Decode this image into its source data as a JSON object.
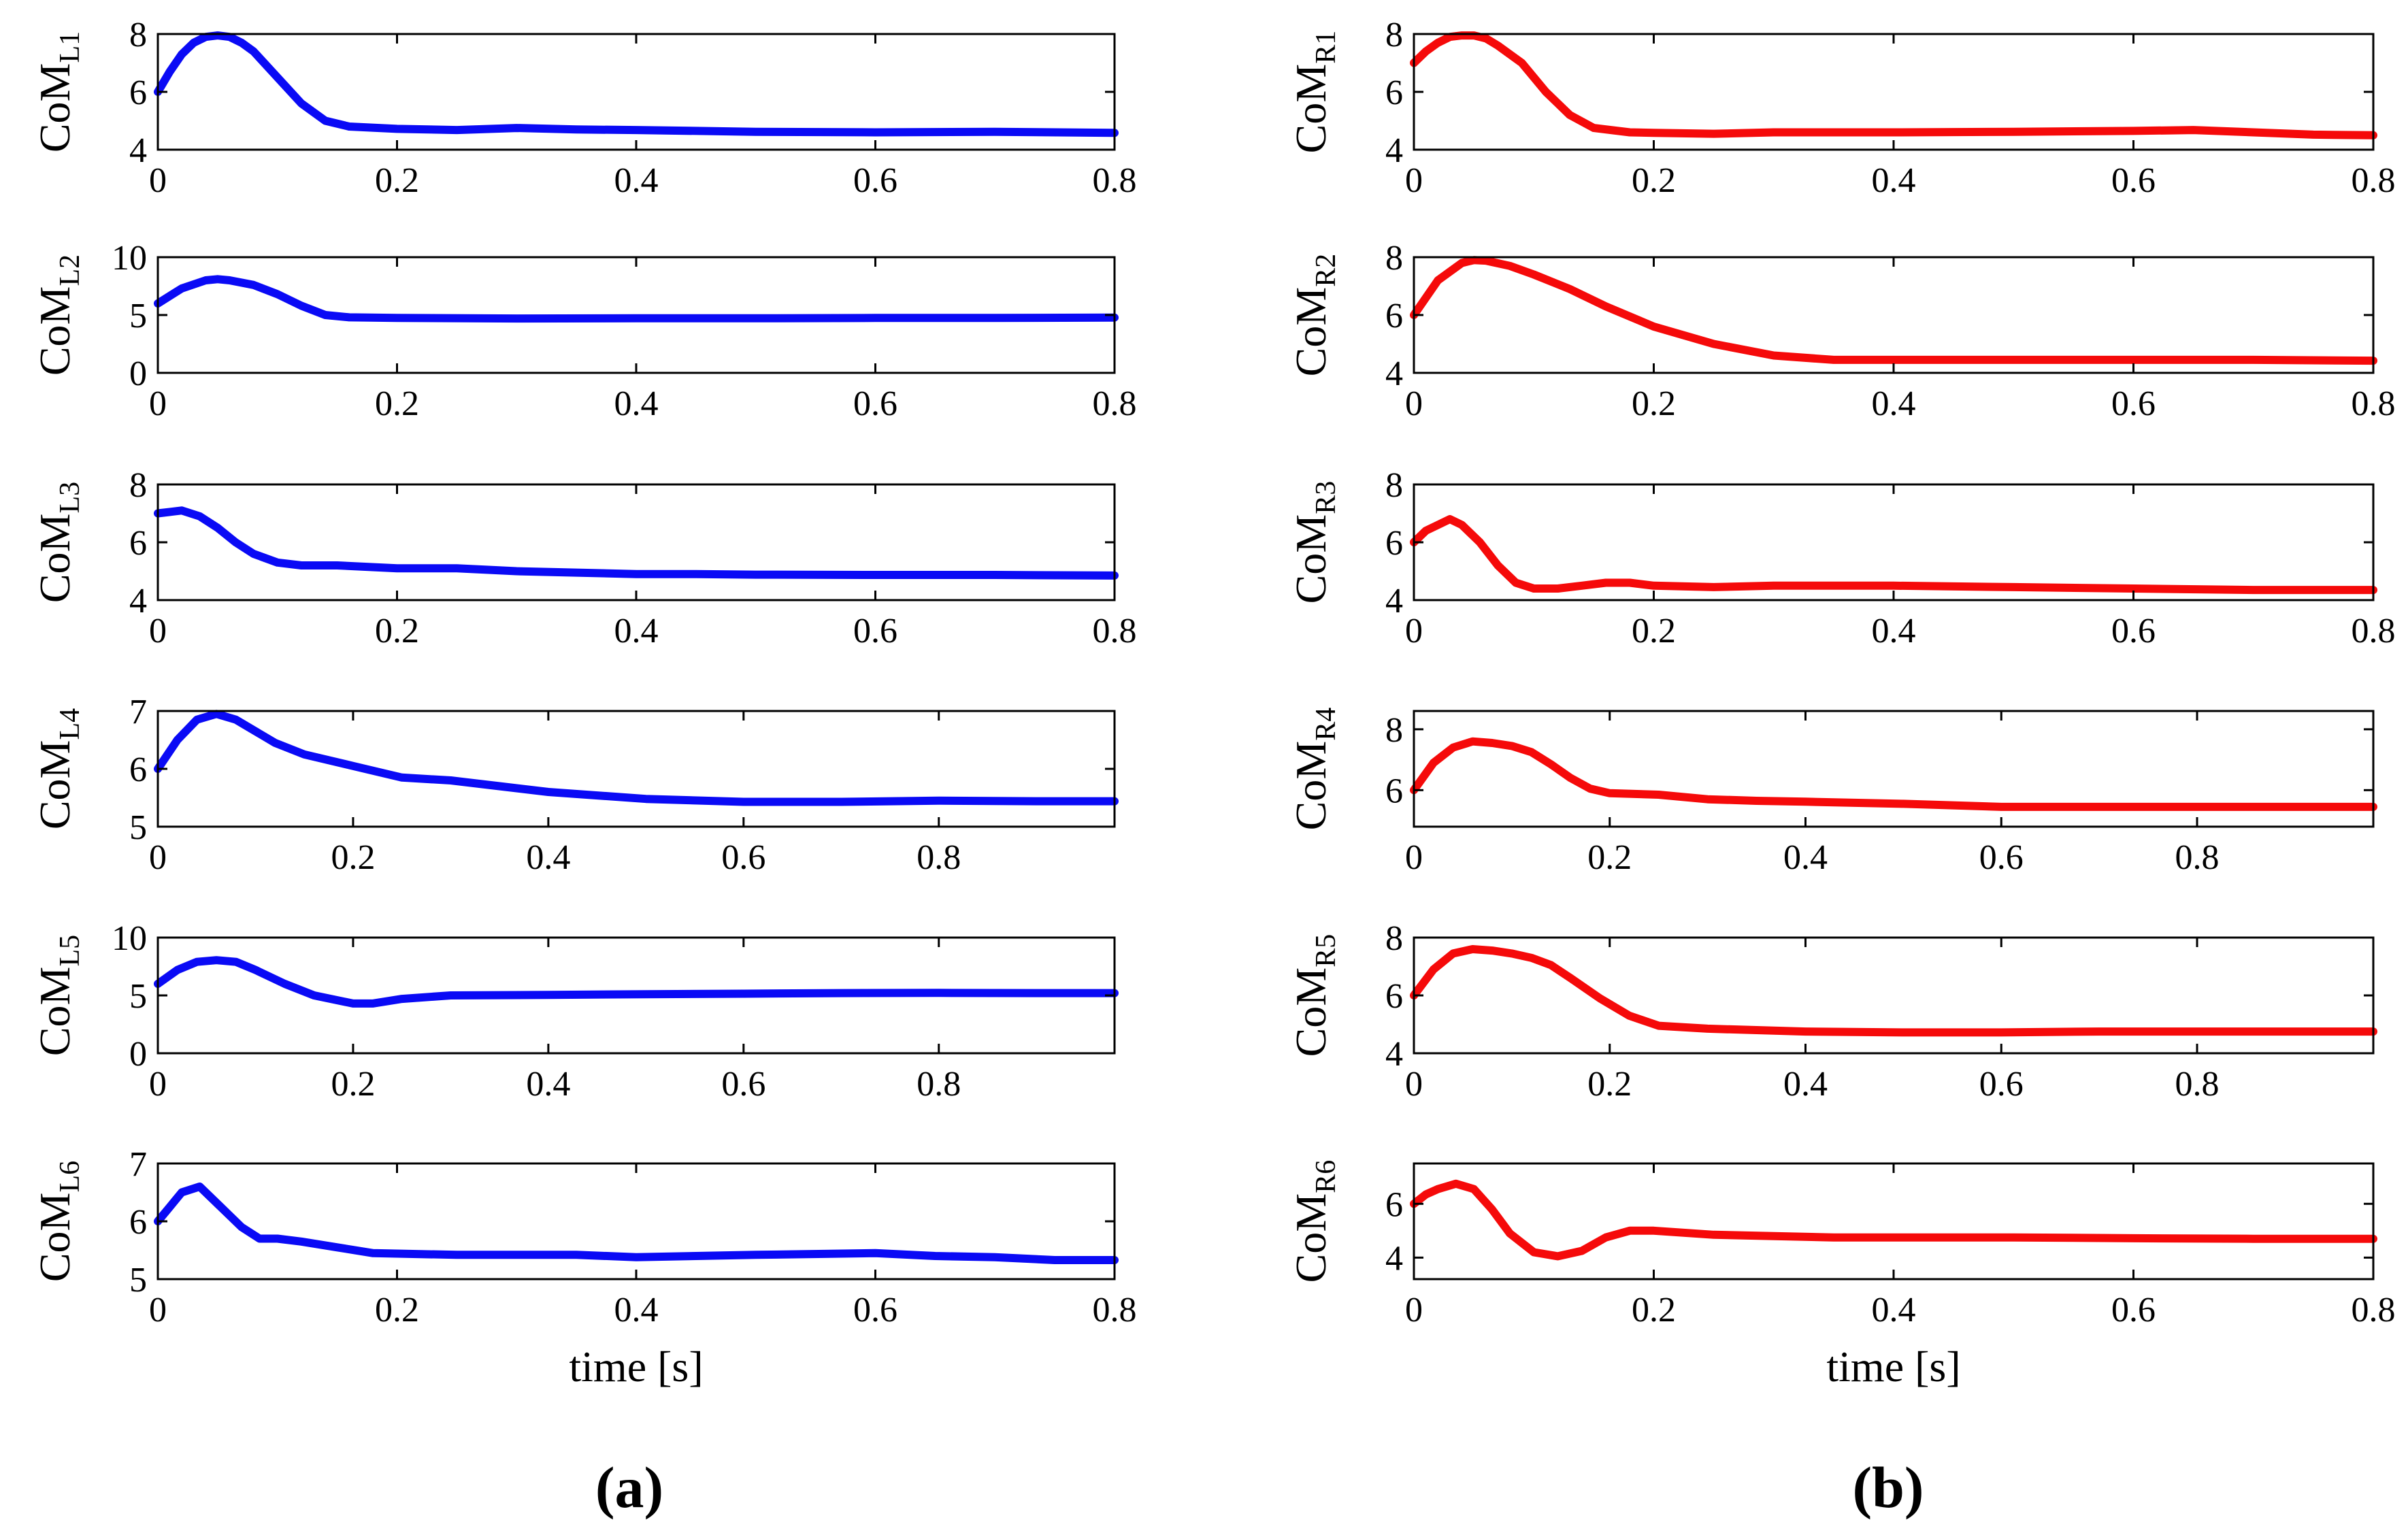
{
  "colors": {
    "left": "#0a0af5",
    "right": "#f50a0a"
  },
  "panel_labels": {
    "a": "(a)",
    "b": "(b)"
  },
  "chart_data": [
    {
      "type": "line",
      "column": "a",
      "row": 1,
      "ylabel_main": "CoM",
      "ylabel_sub": "L1",
      "xlabel": "",
      "xlim": [
        0,
        0.8
      ],
      "xticks": [
        0,
        0.2,
        0.4,
        0.6,
        0.8
      ],
      "xtick_labels": [
        "0",
        "0.2",
        "0.4",
        "0.6",
        "0.8"
      ],
      "ylim": [
        4,
        8
      ],
      "yticks": [
        4,
        6,
        8
      ],
      "ytick_labels": [
        "4",
        "6",
        "8"
      ],
      "x": [
        0,
        0.01,
        0.02,
        0.03,
        0.04,
        0.05,
        0.06,
        0.07,
        0.08,
        0.1,
        0.12,
        0.14,
        0.16,
        0.2,
        0.25,
        0.3,
        0.35,
        0.4,
        0.5,
        0.6,
        0.7,
        0.8
      ],
      "y": [
        6,
        6.7,
        7.3,
        7.7,
        7.9,
        7.95,
        7.9,
        7.7,
        7.4,
        6.5,
        5.6,
        5.0,
        4.8,
        4.72,
        4.68,
        4.75,
        4.7,
        4.68,
        4.62,
        4.6,
        4.62,
        4.58
      ]
    },
    {
      "type": "line",
      "column": "a",
      "row": 2,
      "ylabel_main": "CoM",
      "ylabel_sub": "L2",
      "xlabel": "",
      "xlim": [
        0,
        0.8
      ],
      "xticks": [
        0,
        0.2,
        0.4,
        0.6,
        0.8
      ],
      "xtick_labels": [
        "0",
        "0.2",
        "0.4",
        "0.6",
        "0.8"
      ],
      "ylim": [
        0,
        10
      ],
      "yticks": [
        0,
        5,
        10
      ],
      "ytick_labels": [
        "0",
        "5",
        "10"
      ],
      "x": [
        0,
        0.02,
        0.04,
        0.05,
        0.06,
        0.08,
        0.1,
        0.12,
        0.14,
        0.16,
        0.2,
        0.3,
        0.4,
        0.5,
        0.6,
        0.7,
        0.8
      ],
      "y": [
        6,
        7.3,
        8.0,
        8.1,
        8.0,
        7.6,
        6.8,
        5.8,
        5.0,
        4.8,
        4.75,
        4.7,
        4.72,
        4.72,
        4.75,
        4.75,
        4.78
      ]
    },
    {
      "type": "line",
      "column": "a",
      "row": 3,
      "ylabel_main": "CoM",
      "ylabel_sub": "L3",
      "xlabel": "",
      "xlim": [
        0,
        0.8
      ],
      "xticks": [
        0,
        0.2,
        0.4,
        0.6,
        0.8
      ],
      "xtick_labels": [
        "0",
        "0.2",
        "0.4",
        "0.6",
        "0.8"
      ],
      "ylim": [
        4,
        8
      ],
      "yticks": [
        4,
        6,
        8
      ],
      "ytick_labels": [
        "4",
        "6",
        "8"
      ],
      "x": [
        0,
        0.01,
        0.02,
        0.035,
        0.05,
        0.065,
        0.08,
        0.1,
        0.12,
        0.15,
        0.2,
        0.25,
        0.3,
        0.35,
        0.4,
        0.45,
        0.5,
        0.6,
        0.7,
        0.8
      ],
      "y": [
        7,
        7.05,
        7.1,
        6.9,
        6.5,
        6.0,
        5.6,
        5.3,
        5.2,
        5.2,
        5.1,
        5.1,
        5.0,
        4.95,
        4.9,
        4.9,
        4.88,
        4.87,
        4.87,
        4.85
      ]
    },
    {
      "type": "line",
      "column": "a",
      "row": 4,
      "ylabel_main": "CoM",
      "ylabel_sub": "L4",
      "xlabel": "",
      "xlim": [
        0,
        0.98
      ],
      "xticks": [
        0,
        0.2,
        0.4,
        0.6,
        0.8
      ],
      "xtick_labels": [
        "0",
        "0.2",
        "0.4",
        "0.6",
        "0.8"
      ],
      "ylim": [
        5,
        7
      ],
      "yticks": [
        5,
        6,
        7
      ],
      "ytick_labels": [
        "5",
        "6",
        "7"
      ],
      "x": [
        0,
        0.02,
        0.04,
        0.06,
        0.08,
        0.1,
        0.12,
        0.15,
        0.2,
        0.25,
        0.3,
        0.35,
        0.4,
        0.5,
        0.6,
        0.7,
        0.8,
        0.9,
        0.98
      ],
      "y": [
        6,
        6.5,
        6.85,
        6.95,
        6.85,
        6.65,
        6.45,
        6.25,
        6.05,
        5.85,
        5.8,
        5.7,
        5.6,
        5.48,
        5.43,
        5.43,
        5.45,
        5.44,
        5.44
      ]
    },
    {
      "type": "line",
      "column": "a",
      "row": 5,
      "ylabel_main": "CoM",
      "ylabel_sub": "L5",
      "xlabel": "",
      "xlim": [
        0,
        0.98
      ],
      "xticks": [
        0,
        0.2,
        0.4,
        0.6,
        0.8
      ],
      "xtick_labels": [
        "0",
        "0.2",
        "0.4",
        "0.6",
        "0.8"
      ],
      "ylim": [
        0,
        10
      ],
      "yticks": [
        0,
        5,
        10
      ],
      "ytick_labels": [
        "0",
        "5",
        "10"
      ],
      "x": [
        0,
        0.02,
        0.04,
        0.06,
        0.08,
        0.1,
        0.13,
        0.16,
        0.2,
        0.22,
        0.25,
        0.3,
        0.4,
        0.5,
        0.6,
        0.7,
        0.8,
        0.9,
        0.98
      ],
      "y": [
        6,
        7.2,
        7.9,
        8.05,
        7.9,
        7.2,
        6.0,
        5.0,
        4.3,
        4.3,
        4.7,
        5.0,
        5.05,
        5.1,
        5.15,
        5.2,
        5.22,
        5.2,
        5.2
      ]
    },
    {
      "type": "line",
      "column": "a",
      "row": 6,
      "ylabel_main": "CoM",
      "ylabel_sub": "L6",
      "xlabel": "time [s]",
      "xlim": [
        0,
        0.8
      ],
      "xticks": [
        0,
        0.2,
        0.4,
        0.6,
        0.8
      ],
      "xtick_labels": [
        "0",
        "0.2",
        "0.4",
        "0.6",
        "0.8"
      ],
      "ylim": [
        5,
        7
      ],
      "yticks": [
        5,
        6,
        7
      ],
      "ytick_labels": [
        "5",
        "6",
        "7"
      ],
      "x": [
        0,
        0.01,
        0.02,
        0.035,
        0.05,
        0.07,
        0.085,
        0.1,
        0.12,
        0.15,
        0.18,
        0.25,
        0.3,
        0.35,
        0.4,
        0.45,
        0.5,
        0.6,
        0.65,
        0.7,
        0.75,
        0.8
      ],
      "y": [
        6,
        6.25,
        6.5,
        6.6,
        6.3,
        5.9,
        5.7,
        5.7,
        5.65,
        5.55,
        5.45,
        5.42,
        5.42,
        5.42,
        5.38,
        5.4,
        5.42,
        5.45,
        5.4,
        5.38,
        5.33,
        5.33
      ]
    },
    {
      "type": "line",
      "column": "b",
      "row": 1,
      "ylabel_main": "CoM",
      "ylabel_sub": "R1",
      "xlabel": "",
      "xlim": [
        0,
        0.8
      ],
      "xticks": [
        0,
        0.2,
        0.4,
        0.6,
        0.8
      ],
      "xtick_labels": [
        "0",
        "0.2",
        "0.4",
        "0.6",
        "0.8"
      ],
      "ylim": [
        4,
        8
      ],
      "yticks": [
        4,
        6,
        8
      ],
      "ytick_labels": [
        "4",
        "6",
        "8"
      ],
      "x": [
        0,
        0.01,
        0.02,
        0.03,
        0.04,
        0.05,
        0.06,
        0.07,
        0.09,
        0.11,
        0.13,
        0.15,
        0.18,
        0.2,
        0.25,
        0.3,
        0.4,
        0.5,
        0.6,
        0.65,
        0.7,
        0.75,
        0.8
      ],
      "y": [
        7,
        7.4,
        7.7,
        7.9,
        7.95,
        7.95,
        7.85,
        7.6,
        7.0,
        6.0,
        5.2,
        4.75,
        4.6,
        4.58,
        4.55,
        4.6,
        4.6,
        4.62,
        4.65,
        4.68,
        4.6,
        4.52,
        4.5
      ]
    },
    {
      "type": "line",
      "column": "b",
      "row": 2,
      "ylabel_main": "CoM",
      "ylabel_sub": "R2",
      "xlabel": "",
      "xlim": [
        0,
        0.8
      ],
      "xticks": [
        0,
        0.2,
        0.4,
        0.6,
        0.8
      ],
      "xtick_labels": [
        "0",
        "0.2",
        "0.4",
        "0.6",
        "0.8"
      ],
      "ylim": [
        4,
        8
      ],
      "yticks": [
        4,
        6,
        8
      ],
      "ytick_labels": [
        "4",
        "6",
        "8"
      ],
      "x": [
        0,
        0.02,
        0.04,
        0.05,
        0.06,
        0.08,
        0.1,
        0.13,
        0.16,
        0.2,
        0.25,
        0.3,
        0.35,
        0.4,
        0.5,
        0.6,
        0.7,
        0.8
      ],
      "y": [
        6,
        7.2,
        7.8,
        7.9,
        7.88,
        7.7,
        7.4,
        6.9,
        6.3,
        5.6,
        5.0,
        4.6,
        4.45,
        4.45,
        4.45,
        4.45,
        4.45,
        4.42
      ]
    },
    {
      "type": "line",
      "column": "b",
      "row": 3,
      "ylabel_main": "CoM",
      "ylabel_sub": "R3",
      "xlabel": "",
      "xlim": [
        0,
        0.8
      ],
      "xticks": [
        0,
        0.2,
        0.4,
        0.6,
        0.8
      ],
      "xtick_labels": [
        "0",
        "0.2",
        "0.4",
        "0.6",
        "0.8"
      ],
      "ylim": [
        4,
        8
      ],
      "yticks": [
        4,
        6,
        8
      ],
      "ytick_labels": [
        "4",
        "6",
        "8"
      ],
      "x": [
        0,
        0.01,
        0.02,
        0.03,
        0.04,
        0.055,
        0.07,
        0.085,
        0.1,
        0.12,
        0.14,
        0.16,
        0.18,
        0.2,
        0.25,
        0.3,
        0.4,
        0.5,
        0.6,
        0.7,
        0.8
      ],
      "y": [
        6,
        6.4,
        6.6,
        6.8,
        6.6,
        6.0,
        5.2,
        4.6,
        4.4,
        4.4,
        4.5,
        4.6,
        4.6,
        4.5,
        4.45,
        4.5,
        4.5,
        4.45,
        4.4,
        4.35,
        4.35
      ]
    },
    {
      "type": "line",
      "column": "b",
      "row": 4,
      "ylabel_main": "CoM",
      "ylabel_sub": "R4",
      "xlabel": "",
      "xlim": [
        0,
        0.98
      ],
      "xticks": [
        0,
        0.2,
        0.4,
        0.6,
        0.8
      ],
      "xtick_labels": [
        "0",
        "0.2",
        "0.4",
        "0.6",
        "0.8"
      ],
      "ylim": [
        4.8,
        8.6
      ],
      "yticks": [
        6,
        8
      ],
      "ytick_labels": [
        "6",
        "8"
      ],
      "x": [
        0,
        0.02,
        0.04,
        0.06,
        0.08,
        0.1,
        0.12,
        0.14,
        0.16,
        0.18,
        0.2,
        0.25,
        0.3,
        0.35,
        0.4,
        0.5,
        0.6,
        0.7,
        0.8,
        0.9,
        0.98
      ],
      "y": [
        6,
        6.9,
        7.4,
        7.6,
        7.55,
        7.45,
        7.25,
        6.85,
        6.4,
        6.05,
        5.9,
        5.85,
        5.7,
        5.65,
        5.62,
        5.55,
        5.45,
        5.45,
        5.45,
        5.45,
        5.45
      ]
    },
    {
      "type": "line",
      "column": "b",
      "row": 5,
      "ylabel_main": "CoM",
      "ylabel_sub": "R5",
      "xlabel": "",
      "xlim": [
        0,
        0.98
      ],
      "xticks": [
        0,
        0.2,
        0.4,
        0.6,
        0.8
      ],
      "xtick_labels": [
        "0",
        "0.2",
        "0.4",
        "0.6",
        "0.8"
      ],
      "ylim": [
        4,
        8
      ],
      "yticks": [
        4,
        6,
        8
      ],
      "ytick_labels": [
        "4",
        "6",
        "8"
      ],
      "x": [
        0,
        0.02,
        0.04,
        0.06,
        0.08,
        0.1,
        0.12,
        0.14,
        0.16,
        0.19,
        0.22,
        0.25,
        0.3,
        0.35,
        0.4,
        0.5,
        0.6,
        0.7,
        0.8,
        0.9,
        0.98
      ],
      "y": [
        6,
        6.9,
        7.45,
        7.6,
        7.55,
        7.45,
        7.3,
        7.05,
        6.6,
        5.9,
        5.3,
        4.95,
        4.85,
        4.8,
        4.75,
        4.72,
        4.72,
        4.75,
        4.75,
        4.75,
        4.75
      ]
    },
    {
      "type": "line",
      "column": "b",
      "row": 6,
      "ylabel_main": "CoM",
      "ylabel_sub": "R6",
      "xlabel": "time [s]",
      "xlim": [
        0,
        0.8
      ],
      "xticks": [
        0,
        0.2,
        0.4,
        0.6,
        0.8
      ],
      "xtick_labels": [
        "0",
        "0.2",
        "0.4",
        "0.6",
        "0.8"
      ],
      "ylim": [
        3.2,
        7.5
      ],
      "yticks": [
        4,
        6
      ],
      "ytick_labels": [
        "4",
        "6"
      ],
      "x": [
        0,
        0.01,
        0.02,
        0.035,
        0.05,
        0.065,
        0.08,
        0.1,
        0.12,
        0.14,
        0.16,
        0.18,
        0.2,
        0.25,
        0.3,
        0.35,
        0.4,
        0.5,
        0.6,
        0.7,
        0.8
      ],
      "y": [
        6,
        6.35,
        6.55,
        6.75,
        6.55,
        5.8,
        4.9,
        4.2,
        4.05,
        4.25,
        4.75,
        5.0,
        5.0,
        4.85,
        4.8,
        4.75,
        4.75,
        4.75,
        4.72,
        4.7,
        4.7
      ]
    }
  ]
}
